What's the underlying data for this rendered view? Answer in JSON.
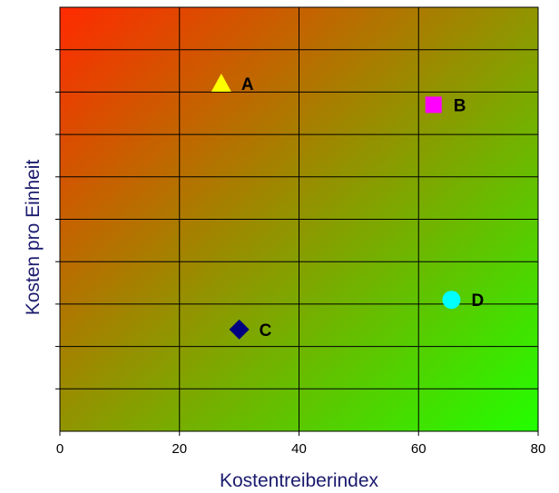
{
  "chart_data": {
    "type": "scatter",
    "xlabel": "Kostentreiberindex",
    "ylabel": "Kosten pro Einheit",
    "xlim": [
      0,
      80
    ],
    "ylim": [
      0,
      10
    ],
    "x_ticks": [
      "0",
      "20",
      "40",
      "60",
      "80"
    ],
    "y_ticks_labeled": false,
    "grid": true,
    "background_gradient": {
      "from": "#ff2a00",
      "to": "#22ff00",
      "direction": "top-left to bottom-right"
    },
    "axis_title_color": "#1a1a6e",
    "points": [
      {
        "label": "A",
        "x": 27,
        "y": 8.2,
        "marker": "triangle",
        "color": "#ffff00"
      },
      {
        "label": "B",
        "x": 62.5,
        "y": 7.7,
        "marker": "square",
        "color": "#ff00ff"
      },
      {
        "label": "C",
        "x": 30,
        "y": 2.4,
        "marker": "diamond",
        "color": "#000080"
      },
      {
        "label": "D",
        "x": 65.5,
        "y": 3.1,
        "marker": "circle",
        "color": "#00ffff"
      }
    ]
  }
}
